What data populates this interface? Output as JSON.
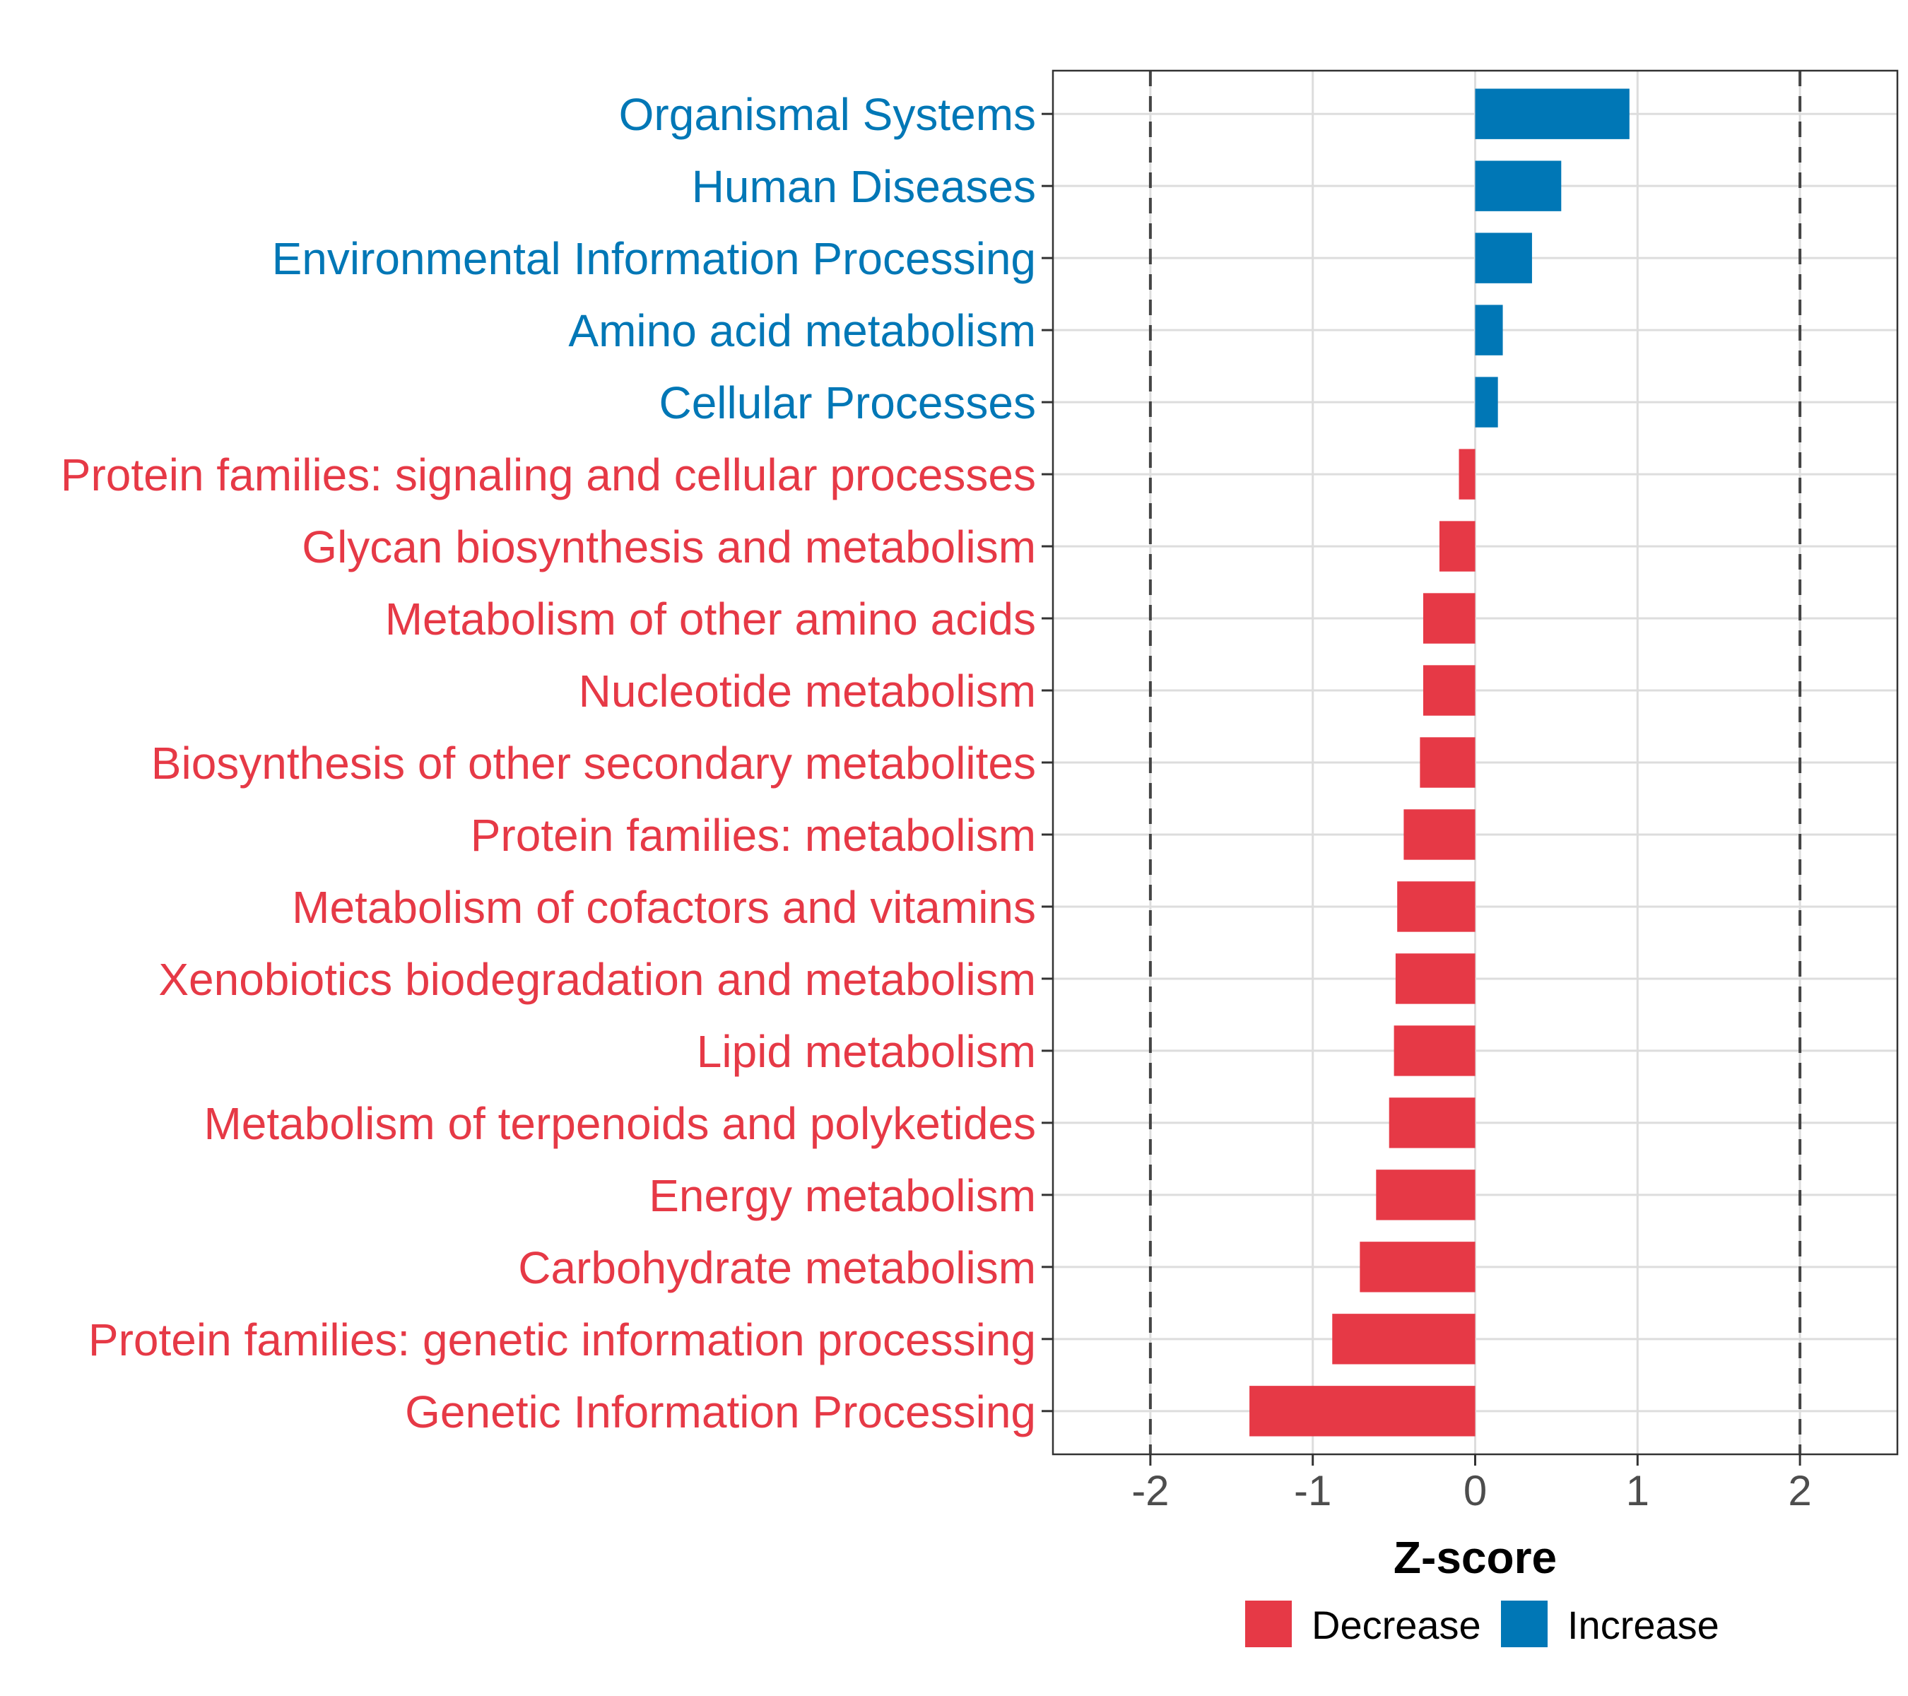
{
  "chart_data": {
    "type": "bar",
    "orientation": "horizontal",
    "title": "",
    "xlabel": "Z-score",
    "ylabel": "",
    "xlim": [
      -2.6,
      2.6
    ],
    "xticks": [
      -2,
      -1,
      0,
      1,
      2
    ],
    "xtick_labels": [
      "-2",
      "-1",
      "0",
      "1",
      "2"
    ],
    "reference_lines": [
      -2,
      2
    ],
    "grid": true,
    "colors": {
      "Decrease": "#E63946",
      "Increase": "#0077B6"
    },
    "categories": [
      "Organismal Systems",
      "Human Diseases",
      "Environmental Information Processing",
      "Amino acid metabolism",
      "Cellular Processes",
      "Protein families: signaling and cellular processes",
      "Glycan biosynthesis and metabolism",
      "Metabolism of other amino acids",
      "Nucleotide metabolism",
      "Biosynthesis of other secondary metabolites",
      "Protein families: metabolism",
      "Metabolism of cofactors and vitamins",
      "Xenobiotics biodegradation and metabolism",
      "Lipid metabolism",
      "Metabolism of terpenoids and polyketides",
      "Energy metabolism",
      "Carbohydrate metabolism",
      "Protein families: genetic information processing",
      "Genetic Information Processing"
    ],
    "values": [
      0.95,
      0.53,
      0.35,
      0.17,
      0.14,
      -0.1,
      -0.22,
      -0.32,
      -0.32,
      -0.34,
      -0.44,
      -0.48,
      -0.49,
      -0.5,
      -0.53,
      -0.61,
      -0.71,
      -0.88,
      -1.39
    ],
    "groups": [
      "Increase",
      "Increase",
      "Increase",
      "Increase",
      "Increase",
      "Decrease",
      "Decrease",
      "Decrease",
      "Decrease",
      "Decrease",
      "Decrease",
      "Decrease",
      "Decrease",
      "Decrease",
      "Decrease",
      "Decrease",
      "Decrease",
      "Decrease",
      "Decrease"
    ],
    "legend": {
      "position": "bottom",
      "entries": [
        "Decrease",
        "Increase"
      ]
    }
  }
}
